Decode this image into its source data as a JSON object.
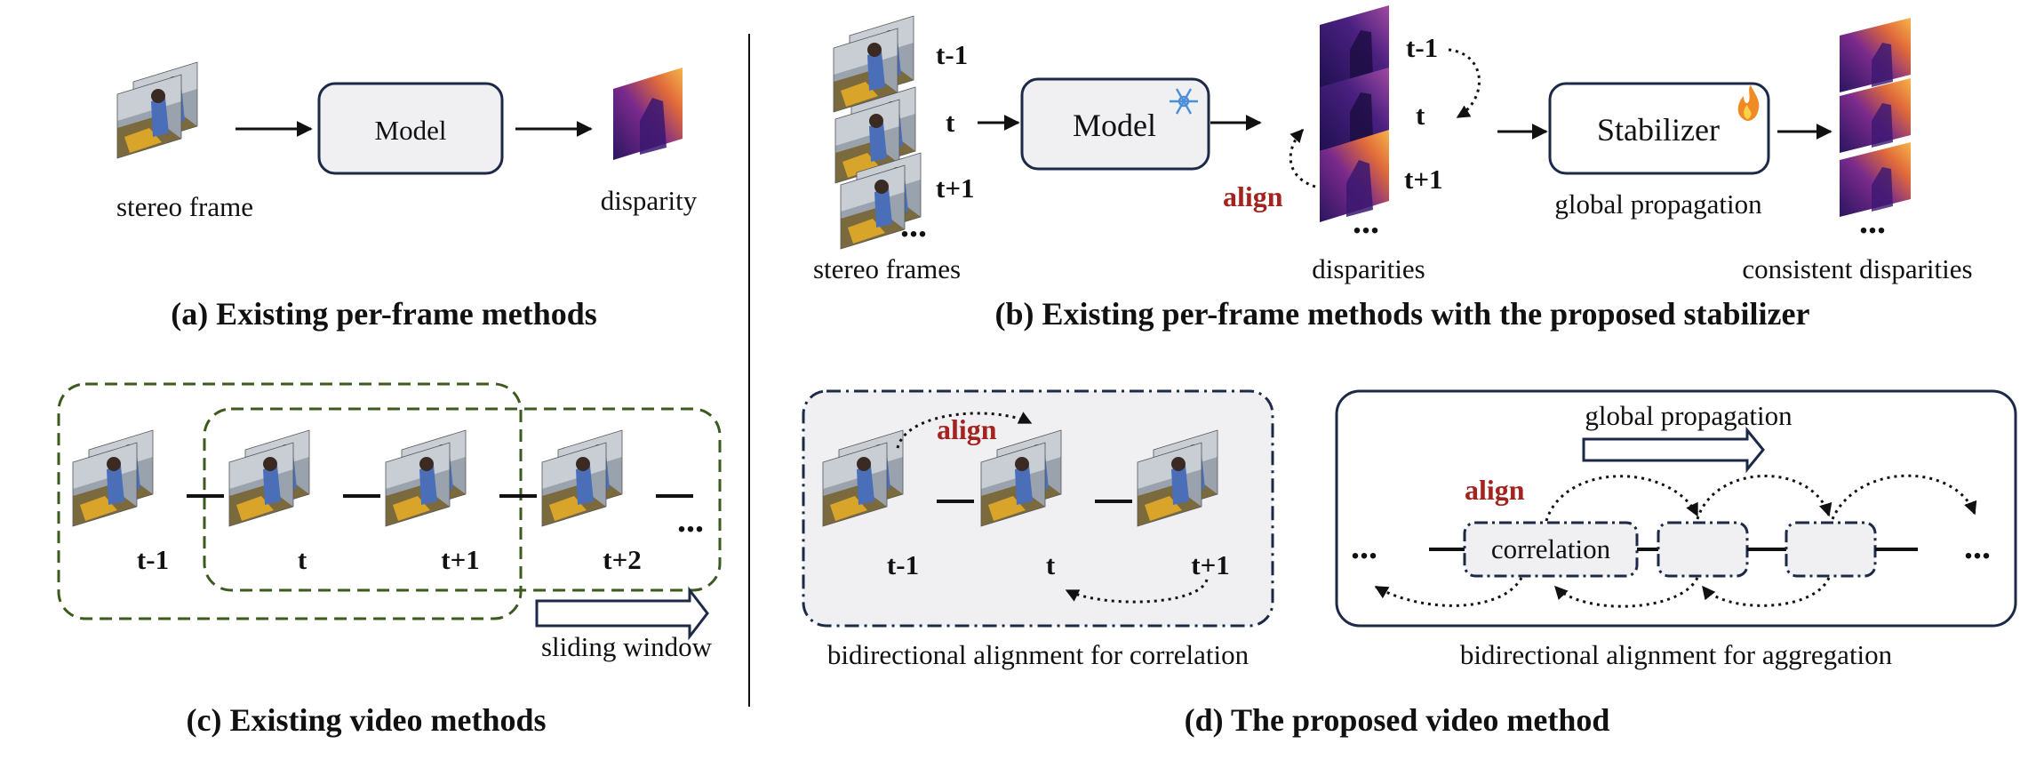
{
  "panel_a": {
    "model_label": "Model",
    "input_label": "stereo frame",
    "output_label": "disparity",
    "caption": "(a) Existing per-frame methods"
  },
  "panel_b": {
    "frame_labels": [
      "t-1",
      "t",
      "t+1"
    ],
    "ellipsis": "...",
    "model_label": "Model",
    "frozen_icon": "snowflake-icon",
    "input_label": "stereo frames",
    "disparity_labels": [
      "t-1",
      "t",
      "t+1"
    ],
    "align_label": "align",
    "disparities_label": "disparities",
    "stabilizer_label": "Stabilizer",
    "trainable_icon": "flame-icon",
    "propagation_label": "global propagation",
    "output_label": "consistent disparities",
    "caption": "(b) Existing per-frame methods with the proposed stabilizer"
  },
  "panel_c": {
    "frame_labels": [
      "t-1",
      "t",
      "t+1",
      "t+2"
    ],
    "ellipsis": "...",
    "window_label": "sliding window",
    "caption": "(c) Existing video methods"
  },
  "panel_d": {
    "left": {
      "frame_labels": [
        "t-1",
        "t",
        "t+1"
      ],
      "align_label": "align",
      "sub_caption": "bidirectional alignment for correlation"
    },
    "right": {
      "propagation_label": "global propagation",
      "align_label": "align",
      "correlation_label": "correlation",
      "ellipsis_left": "...",
      "ellipsis_right": "...",
      "sub_caption": "bidirectional alignment for aggregation"
    },
    "caption": "(d) The proposed video method"
  },
  "colors": {
    "align_red": "#a5231e",
    "box_border": "#1c2a48",
    "box_fill": "#f0f0f2",
    "window_green": "#3d5a1e",
    "disparity_hot": "#f2a23a",
    "disparity_cold": "#2a1560"
  }
}
